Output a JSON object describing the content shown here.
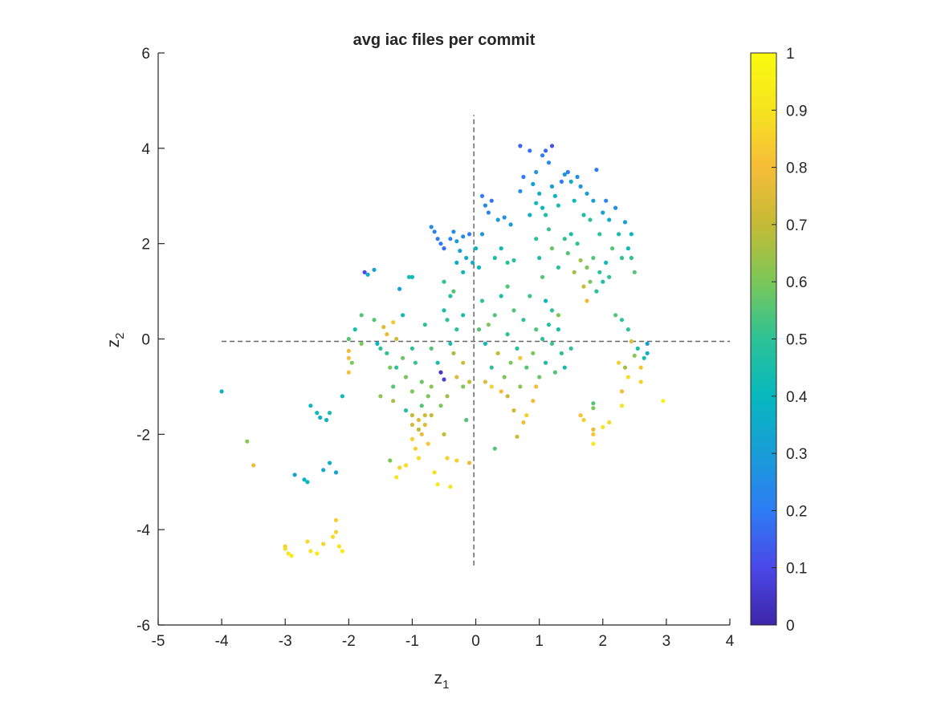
{
  "chart_data": {
    "type": "scatter",
    "title": "avg iac files per commit",
    "xlabel": {
      "base": "z",
      "sub": "1"
    },
    "ylabel": {
      "base": "z",
      "sub": "2"
    },
    "xlim": [
      -5,
      4
    ],
    "ylim": [
      -6,
      6
    ],
    "xticks": [
      -5,
      -4,
      -3,
      -2,
      -1,
      0,
      1,
      2,
      3,
      4
    ],
    "yticks": [
      -6,
      -4,
      -2,
      0,
      2,
      4,
      6
    ],
    "grid": false,
    "reference_lines": [
      {
        "orientation": "horizontal",
        "value": -0.05,
        "from": -4.0,
        "to": 4.0,
        "style": "dashed"
      },
      {
        "orientation": "vertical",
        "value": -0.03,
        "from": -4.75,
        "to": 4.7,
        "style": "dashed"
      }
    ],
    "colorbar": {
      "colormap": "parula",
      "range": [
        0,
        1
      ],
      "ticks": [
        0,
        0.1,
        0.2,
        0.3,
        0.4,
        0.5,
        0.6,
        0.7,
        0.8,
        0.9,
        1
      ],
      "tick_labels": [
        "0",
        "0.1",
        "0.2",
        "0.3",
        "0.4",
        "0.5",
        "0.6",
        "0.7",
        "0.8",
        "0.9",
        "1"
      ],
      "stops": [
        "#3e26a8",
        "#4a48e8",
        "#2e7cf4",
        "#189dd7",
        "#07b8be",
        "#2cc295",
        "#7bc758",
        "#c4bb36",
        "#f6bc37",
        "#f6e41f",
        "#f9fb0e"
      ]
    },
    "points": [
      [
        -4.0,
        -1.1,
        0.38
      ],
      [
        -3.6,
        -2.15,
        0.62
      ],
      [
        -3.5,
        -2.65,
        0.78
      ],
      [
        -2.85,
        -2.85,
        0.32
      ],
      [
        -2.7,
        -2.95,
        0.38
      ],
      [
        -2.65,
        -3.0,
        0.4
      ],
      [
        -2.4,
        -2.75,
        0.35
      ],
      [
        -2.3,
        -2.6,
        0.38
      ],
      [
        -2.2,
        -2.8,
        0.33
      ],
      [
        -2.6,
        -1.4,
        0.4
      ],
      [
        -2.5,
        -1.55,
        0.42
      ],
      [
        -2.45,
        -1.65,
        0.38
      ],
      [
        -2.35,
        -1.7,
        0.4
      ],
      [
        -2.3,
        -1.55,
        0.45
      ],
      [
        -2.1,
        -1.2,
        0.42
      ],
      [
        -3.0,
        -4.35,
        0.85
      ],
      [
        -3.0,
        -4.4,
        0.88
      ],
      [
        -2.95,
        -4.5,
        0.9
      ],
      [
        -2.9,
        -4.55,
        0.92
      ],
      [
        -2.65,
        -4.25,
        0.88
      ],
      [
        -2.6,
        -4.45,
        0.9
      ],
      [
        -2.5,
        -4.5,
        0.92
      ],
      [
        -2.4,
        -4.3,
        0.86
      ],
      [
        -2.25,
        -4.15,
        0.88
      ],
      [
        -2.2,
        -4.05,
        0.85
      ],
      [
        -2.2,
        -3.8,
        0.84
      ],
      [
        -2.15,
        -4.35,
        0.9
      ],
      [
        -2.1,
        -4.45,
        0.93
      ],
      [
        -2.0,
        0.0,
        0.55
      ],
      [
        -2.0,
        -0.25,
        0.8
      ],
      [
        -2.0,
        -0.4,
        0.8
      ],
      [
        -2.0,
        -0.7,
        0.82
      ],
      [
        -1.95,
        -0.5,
        0.6
      ],
      [
        -1.9,
        0.2,
        0.45
      ],
      [
        -1.8,
        0.5,
        0.55
      ],
      [
        -1.8,
        -0.1,
        0.6
      ],
      [
        -1.75,
        1.4,
        0.1
      ],
      [
        -1.7,
        1.35,
        0.35
      ],
      [
        -1.6,
        1.45,
        0.3
      ],
      [
        -1.6,
        0.4,
        0.55
      ],
      [
        -1.55,
        -0.1,
        0.4
      ],
      [
        -1.5,
        -0.2,
        0.5
      ],
      [
        -1.5,
        -1.2,
        0.62
      ],
      [
        -1.45,
        0.25,
        0.75
      ],
      [
        -1.4,
        0.1,
        0.78
      ],
      [
        -1.4,
        -0.3,
        0.5
      ],
      [
        -1.35,
        -0.6,
        0.6
      ],
      [
        -1.3,
        0.35,
        0.82
      ],
      [
        -1.3,
        -1.0,
        0.55
      ],
      [
        -1.3,
        -1.3,
        0.65
      ],
      [
        -1.35,
        -2.55,
        0.6
      ],
      [
        -1.25,
        0.0,
        0.72
      ],
      [
        -1.25,
        -0.6,
        0.5
      ],
      [
        -1.2,
        1.05,
        0.3
      ],
      [
        -1.15,
        0.5,
        0.42
      ],
      [
        -1.15,
        -0.4,
        0.58
      ],
      [
        -1.1,
        -0.8,
        0.6
      ],
      [
        -1.1,
        -1.5,
        0.48
      ],
      [
        -1.05,
        1.3,
        0.45
      ],
      [
        -1.0,
        1.3,
        0.4
      ],
      [
        -1.0,
        -0.2,
        0.5
      ],
      [
        -1.0,
        -1.1,
        0.6
      ],
      [
        -1.0,
        -1.6,
        0.7
      ],
      [
        -1.0,
        -1.8,
        0.72
      ],
      [
        -1.0,
        -2.1,
        0.85
      ],
      [
        -0.95,
        -0.5,
        0.52
      ],
      [
        -0.95,
        -2.3,
        0.85
      ],
      [
        -0.9,
        -1.7,
        0.75
      ],
      [
        -0.9,
        -1.9,
        0.7
      ],
      [
        -0.9,
        -2.5,
        0.88
      ],
      [
        -0.85,
        -0.9,
        0.58
      ],
      [
        -0.85,
        -1.4,
        0.55
      ],
      [
        -0.85,
        -2.0,
        0.78
      ],
      [
        -0.8,
        0.3,
        0.5
      ],
      [
        -0.8,
        -1.6,
        0.72
      ],
      [
        -0.8,
        -1.8,
        0.76
      ],
      [
        -0.75,
        -1.2,
        0.6
      ],
      [
        -0.75,
        -2.2,
        0.82
      ],
      [
        -0.7,
        -0.2,
        0.55
      ],
      [
        -0.7,
        -1.0,
        0.62
      ],
      [
        -0.7,
        -1.6,
        0.7
      ],
      [
        -0.65,
        -2.8,
        0.9
      ],
      [
        -0.6,
        -0.5,
        0.45
      ],
      [
        -0.6,
        -3.05,
        0.92
      ],
      [
        -0.55,
        -0.7,
        0.05
      ],
      [
        -0.55,
        -1.4,
        0.6
      ],
      [
        -0.5,
        0.6,
        0.45
      ],
      [
        -0.5,
        -0.85,
        0.08
      ],
      [
        -0.45,
        -1.2,
        0.65
      ],
      [
        -0.45,
        -2.5,
        0.85
      ],
      [
        -0.4,
        0.9,
        0.48
      ],
      [
        -0.4,
        -3.1,
        0.9
      ],
      [
        -0.35,
        -0.3,
        0.65
      ],
      [
        -1.1,
        -2.65,
        0.88
      ],
      [
        -1.25,
        -2.9,
        0.9
      ],
      [
        -1.2,
        -2.7,
        0.86
      ],
      [
        -0.5,
        -2.0,
        0.7
      ],
      [
        -0.3,
        -0.8,
        0.75
      ],
      [
        -0.3,
        -2.55,
        0.85
      ],
      [
        -0.2,
        -1.0,
        0.6
      ],
      [
        -0.2,
        -0.5,
        0.72
      ],
      [
        -0.15,
        -1.7,
        0.55
      ],
      [
        -0.1,
        -0.9,
        0.7
      ],
      [
        -0.1,
        -2.6,
        0.78
      ],
      [
        -0.7,
        2.35,
        0.25
      ],
      [
        -0.65,
        2.25,
        0.22
      ],
      [
        -0.6,
        2.1,
        0.2
      ],
      [
        -0.55,
        2.0,
        0.2
      ],
      [
        -0.5,
        1.9,
        0.18
      ],
      [
        -0.4,
        2.1,
        0.22
      ],
      [
        -0.35,
        2.25,
        0.25
      ],
      [
        -0.3,
        2.05,
        0.3
      ],
      [
        -0.3,
        1.6,
        0.35
      ],
      [
        -0.25,
        1.85,
        0.3
      ],
      [
        -0.2,
        2.15,
        0.25
      ],
      [
        -0.2,
        1.4,
        0.4
      ],
      [
        -0.15,
        1.7,
        0.35
      ],
      [
        -0.1,
        2.2,
        0.2
      ],
      [
        -0.05,
        1.6,
        0.35
      ],
      [
        0.0,
        1.9,
        0.38
      ],
      [
        0.05,
        1.5,
        0.4
      ],
      [
        0.1,
        2.2,
        0.28
      ],
      [
        0.1,
        3.0,
        0.2
      ],
      [
        0.15,
        2.8,
        0.25
      ],
      [
        0.2,
        2.65,
        0.22
      ],
      [
        0.25,
        2.9,
        0.18
      ],
      [
        0.3,
        1.7,
        0.45
      ],
      [
        0.35,
        2.5,
        0.3
      ],
      [
        0.4,
        1.9,
        0.42
      ],
      [
        0.45,
        2.55,
        0.25
      ],
      [
        0.5,
        1.6,
        0.5
      ],
      [
        0.5,
        1.1,
        0.55
      ],
      [
        0.55,
        2.4,
        0.3
      ],
      [
        0.6,
        1.65,
        0.48
      ],
      [
        -0.5,
        1.2,
        0.5
      ],
      [
        -0.45,
        0.4,
        0.5
      ],
      [
        -0.4,
        -0.1,
        0.45
      ],
      [
        -0.35,
        1.0,
        0.55
      ],
      [
        -0.3,
        0.2,
        0.5
      ],
      [
        -0.2,
        0.5,
        0.45
      ],
      [
        0.05,
        0.2,
        0.55
      ],
      [
        0.1,
        0.8,
        0.5
      ],
      [
        0.15,
        -0.1,
        0.42
      ],
      [
        0.2,
        0.3,
        0.6
      ],
      [
        0.25,
        -0.6,
        0.5
      ],
      [
        0.3,
        0.5,
        0.55
      ],
      [
        0.35,
        -0.3,
        0.7
      ],
      [
        0.4,
        0.9,
        0.45
      ],
      [
        0.45,
        -0.8,
        0.6
      ],
      [
        0.5,
        0.1,
        0.5
      ],
      [
        0.55,
        -0.5,
        0.6
      ],
      [
        0.6,
        0.6,
        0.55
      ],
      [
        0.65,
        -0.2,
        0.48
      ],
      [
        0.7,
        -1.0,
        0.62
      ],
      [
        0.75,
        0.4,
        0.5
      ],
      [
        0.8,
        -0.6,
        0.55
      ],
      [
        0.85,
        0.9,
        0.52
      ],
      [
        0.9,
        -0.3,
        0.6
      ],
      [
        0.95,
        0.2,
        0.55
      ],
      [
        1.0,
        -0.8,
        0.58
      ],
      [
        1.05,
        0.0,
        0.5
      ],
      [
        1.1,
        -0.5,
        0.45
      ],
      [
        1.15,
        0.3,
        0.48
      ],
      [
        1.2,
        -0.1,
        0.52
      ],
      [
        1.25,
        -0.7,
        0.55
      ],
      [
        1.3,
        0.5,
        0.6
      ],
      [
        1.35,
        -0.3,
        0.5
      ],
      [
        1.4,
        -0.6,
        0.45
      ],
      [
        1.5,
        -0.2,
        0.5
      ],
      [
        0.15,
        -0.9,
        0.75
      ],
      [
        0.25,
        -1.0,
        0.85
      ],
      [
        0.4,
        -1.1,
        0.8
      ],
      [
        0.5,
        -1.2,
        0.7
      ],
      [
        0.6,
        -1.5,
        0.72
      ],
      [
        0.65,
        -2.05,
        0.72
      ],
      [
        0.7,
        -0.4,
        0.82
      ],
      [
        0.75,
        -1.75,
        0.8
      ],
      [
        0.8,
        -1.6,
        0.85
      ],
      [
        0.9,
        -1.3,
        0.8
      ],
      [
        0.95,
        -1.0,
        0.8
      ],
      [
        0.3,
        -2.3,
        0.55
      ],
      [
        0.7,
        4.05,
        0.15
      ],
      [
        0.85,
        3.95,
        0.18
      ],
      [
        1.05,
        3.85,
        0.2
      ],
      [
        1.1,
        3.95,
        0.15
      ],
      [
        1.2,
        4.05,
        0.12
      ],
      [
        1.15,
        3.7,
        0.25
      ],
      [
        0.95,
        3.5,
        0.28
      ],
      [
        0.9,
        3.25,
        0.3
      ],
      [
        0.75,
        3.4,
        0.2
      ],
      [
        0.7,
        3.1,
        0.25
      ],
      [
        1.0,
        3.05,
        0.35
      ],
      [
        1.05,
        2.75,
        0.4
      ],
      [
        1.1,
        2.6,
        0.45
      ],
      [
        0.95,
        2.85,
        0.42
      ],
      [
        0.85,
        2.6,
        0.35
      ],
      [
        1.2,
        3.2,
        0.3
      ],
      [
        1.25,
        3.0,
        0.4
      ],
      [
        1.3,
        2.8,
        0.45
      ],
      [
        1.35,
        3.3,
        0.2
      ],
      [
        1.4,
        3.45,
        0.28
      ],
      [
        1.45,
        3.5,
        0.22
      ],
      [
        1.5,
        3.3,
        0.35
      ],
      [
        1.55,
        2.9,
        0.42
      ],
      [
        1.6,
        3.4,
        0.25
      ],
      [
        1.65,
        3.2,
        0.28
      ],
      [
        1.7,
        2.6,
        0.45
      ],
      [
        1.75,
        3.05,
        0.3
      ],
      [
        1.8,
        2.5,
        0.5
      ],
      [
        1.85,
        2.9,
        0.3
      ],
      [
        1.9,
        3.55,
        0.2
      ],
      [
        1.95,
        2.2,
        0.5
      ],
      [
        2.0,
        2.65,
        0.3
      ],
      [
        2.05,
        2.9,
        0.22
      ],
      [
        2.1,
        2.5,
        0.35
      ],
      [
        2.15,
        1.9,
        0.55
      ],
      [
        2.2,
        2.75,
        0.25
      ],
      [
        2.25,
        2.2,
        0.45
      ],
      [
        2.3,
        1.7,
        0.5
      ],
      [
        2.35,
        2.45,
        0.3
      ],
      [
        2.4,
        1.9,
        0.42
      ],
      [
        2.45,
        2.2,
        0.4
      ],
      [
        2.5,
        1.4,
        0.55
      ],
      [
        2.45,
        1.7,
        0.5
      ],
      [
        2.1,
        1.3,
        0.5
      ],
      [
        0.95,
        2.1,
        0.5
      ],
      [
        1.0,
        1.7,
        0.45
      ],
      [
        1.05,
        1.3,
        0.55
      ],
      [
        1.15,
        2.3,
        0.52
      ],
      [
        1.2,
        1.9,
        0.58
      ],
      [
        1.3,
        1.5,
        0.5
      ],
      [
        1.4,
        2.1,
        0.5
      ],
      [
        1.45,
        1.8,
        0.55
      ],
      [
        1.5,
        2.2,
        0.45
      ],
      [
        1.55,
        1.4,
        0.65
      ],
      [
        1.6,
        2.0,
        0.5
      ],
      [
        1.65,
        1.65,
        0.65
      ],
      [
        1.7,
        1.1,
        0.72
      ],
      [
        1.75,
        1.5,
        0.6
      ],
      [
        1.8,
        1.2,
        0.6
      ],
      [
        1.85,
        1.7,
        0.55
      ],
      [
        1.9,
        1.0,
        0.48
      ],
      [
        1.95,
        1.4,
        0.5
      ],
      [
        2.0,
        1.2,
        0.45
      ],
      [
        2.05,
        1.6,
        0.42
      ],
      [
        1.1,
        0.8,
        0.4
      ],
      [
        1.2,
        0.6,
        0.5
      ],
      [
        1.3,
        0.2,
        0.45
      ],
      [
        1.75,
        0.8,
        0.78
      ],
      [
        2.2,
        0.5,
        0.55
      ],
      [
        2.3,
        0.4,
        0.5
      ],
      [
        2.35,
        -0.6,
        0.65
      ],
      [
        2.4,
        0.2,
        0.5
      ],
      [
        2.45,
        -0.05,
        0.75
      ],
      [
        2.5,
        -0.35,
        0.62
      ],
      [
        2.55,
        -0.2,
        0.45
      ],
      [
        2.6,
        -0.6,
        0.82
      ],
      [
        2.65,
        -0.4,
        0.45
      ],
      [
        2.7,
        -0.1,
        0.3
      ],
      [
        2.7,
        -0.3,
        0.35
      ],
      [
        2.6,
        -0.9,
        0.85
      ],
      [
        2.4,
        -0.8,
        0.88
      ],
      [
        2.3,
        -1.1,
        0.8
      ],
      [
        2.25,
        -0.5,
        0.85
      ],
      [
        2.3,
        -1.4,
        0.9
      ],
      [
        1.65,
        -1.6,
        0.82
      ],
      [
        1.7,
        -1.7,
        0.85
      ],
      [
        1.85,
        -1.35,
        0.55
      ],
      [
        1.85,
        -1.45,
        0.6
      ],
      [
        1.85,
        -1.9,
        0.78
      ],
      [
        1.85,
        -2.0,
        0.82
      ],
      [
        1.85,
        -2.2,
        0.92
      ],
      [
        2.0,
        -1.85,
        0.9
      ],
      [
        2.1,
        -1.75,
        0.88
      ],
      [
        2.95,
        -1.3,
        0.95
      ]
    ]
  }
}
